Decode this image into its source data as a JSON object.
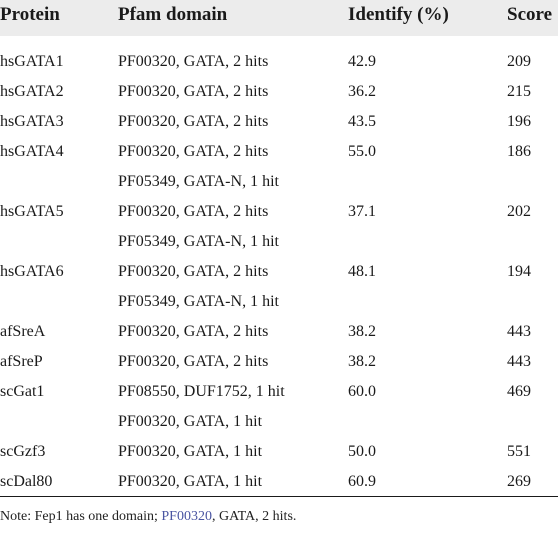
{
  "table": {
    "headers": [
      "Protein",
      "Pfam domain",
      "Identify (%)",
      "Score"
    ],
    "rows": [
      [
        "hsGATA1",
        "PF00320, GATA, 2 hits",
        "42.9",
        "209"
      ],
      [
        "hsGATA2",
        "PF00320, GATA, 2 hits",
        "36.2",
        "215"
      ],
      [
        "hsGATA3",
        "PF00320, GATA, 2 hits",
        "43.5",
        "196"
      ],
      [
        "hsGATA4",
        "PF00320, GATA, 2 hits",
        "55.0",
        "186"
      ],
      [
        "",
        "PF05349, GATA-N, 1 hit",
        "",
        ""
      ],
      [
        "hsGATA5",
        "PF00320, GATA, 2 hits",
        "37.1",
        "202"
      ],
      [
        "",
        "PF05349, GATA-N, 1 hit",
        "",
        ""
      ],
      [
        "hsGATA6",
        "PF00320, GATA, 2 hits",
        "48.1",
        "194"
      ],
      [
        "",
        "PF05349, GATA-N, 1 hit",
        "",
        ""
      ],
      [
        "afSreA",
        "PF00320, GATA, 2 hits",
        "38.2",
        "443"
      ],
      [
        "afSreP",
        "PF00320, GATA, 2 hits",
        "38.2",
        "443"
      ],
      [
        "scGat1",
        "PF08550, DUF1752, 1 hit",
        "60.0",
        "469"
      ],
      [
        "",
        "PF00320, GATA, 1 hit",
        "",
        ""
      ],
      [
        "scGzf3",
        "PF00320, GATA, 1 hit",
        "50.0",
        "551"
      ],
      [
        "scDal80",
        "PF00320, GATA, 1 hit",
        "60.9",
        "269"
      ]
    ]
  },
  "note": {
    "prefix": "Note: Fep1 has one domain; ",
    "link": "PF00320",
    "suffix": ", GATA, 2 hits."
  },
  "colors": {
    "header_bg": "#ececec",
    "link": "#4a55a2"
  }
}
